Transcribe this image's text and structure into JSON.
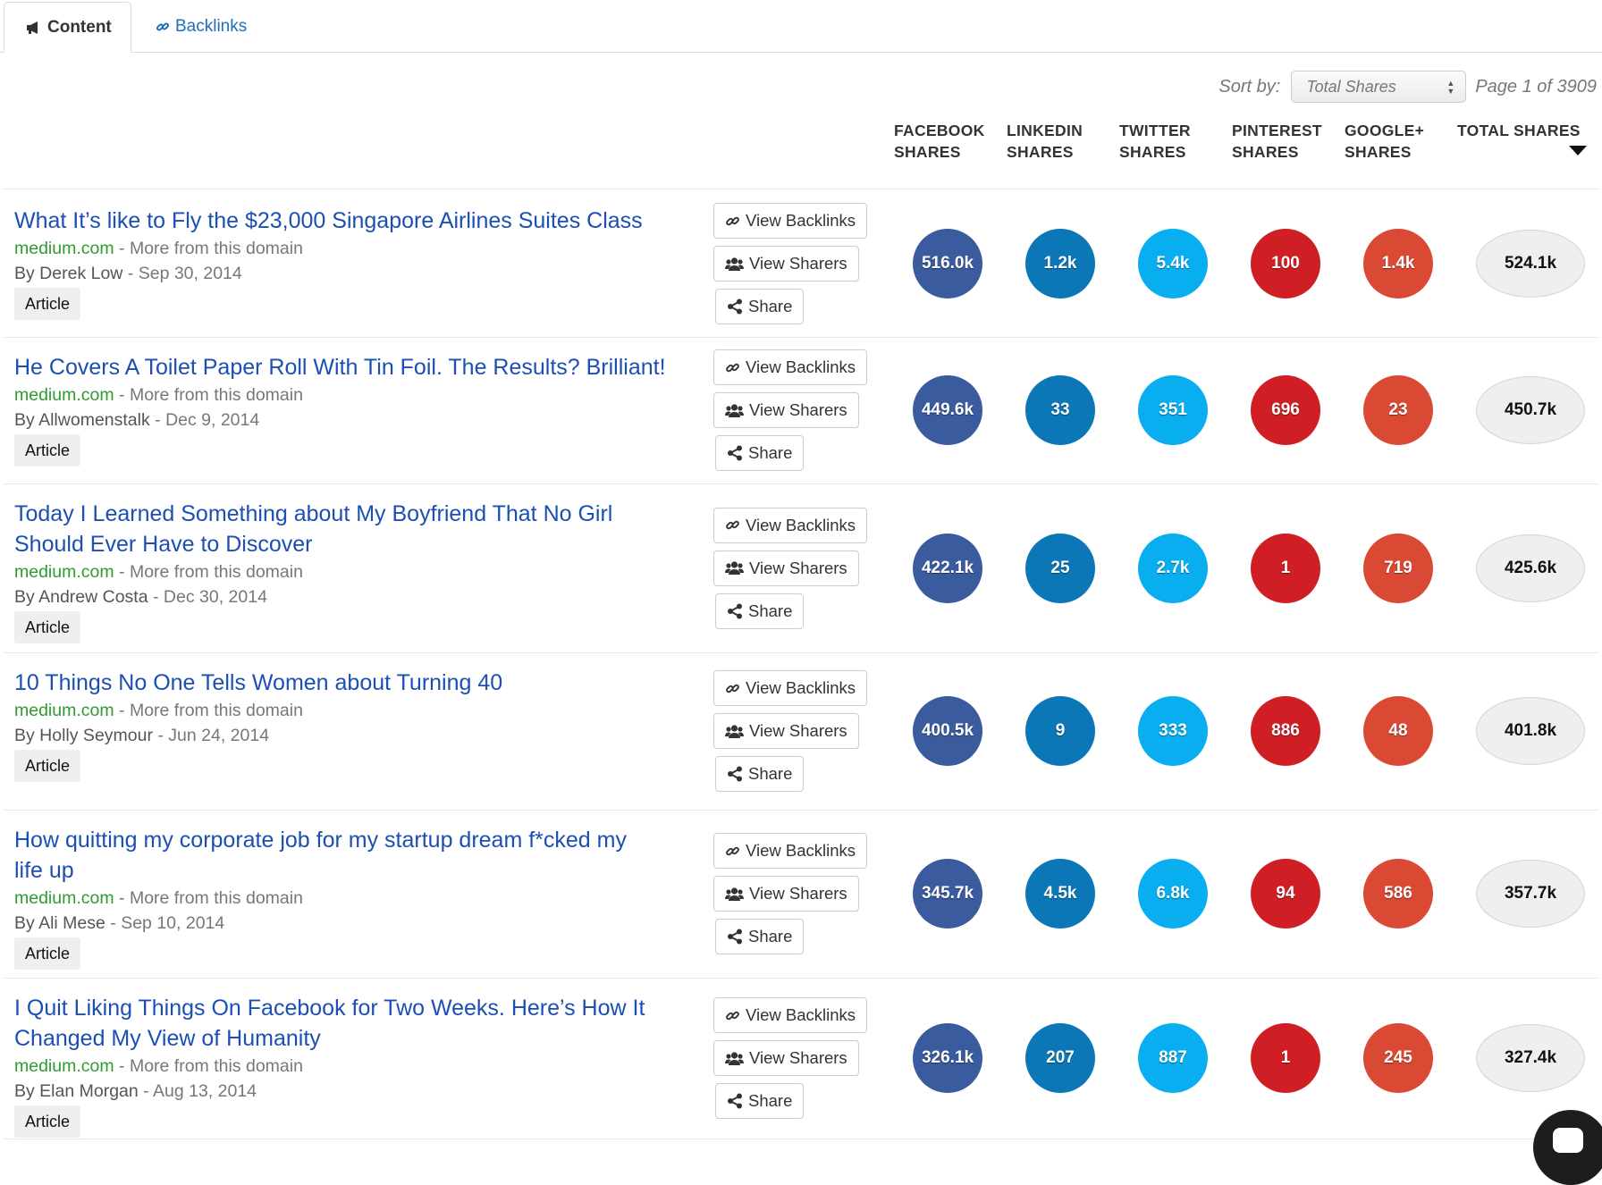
{
  "tabs": {
    "content_label": "Content",
    "backlinks_label": "Backlinks"
  },
  "sort": {
    "label": "Sort by:",
    "selected": "Total Shares",
    "page_info": "Page 1 of 3909"
  },
  "columns": {
    "facebook": [
      "FACEBOOK",
      "SHARES"
    ],
    "linkedin": [
      "LINKEDIN",
      "SHARES"
    ],
    "twitter": [
      "TWITTER",
      "SHARES"
    ],
    "pinterest": [
      "PINTEREST",
      "SHARES"
    ],
    "googleplus": [
      "GOOGLE+",
      "SHARES"
    ],
    "total": [
      "TOTAL SHARES",
      ""
    ]
  },
  "buttons": {
    "backlinks": "View Backlinks",
    "sharers": "View Sharers",
    "share": "Share"
  },
  "colors": {
    "facebook": "#3b5b9f",
    "linkedin": "#0b77b7",
    "twitter": "#08aeef",
    "pinterest": "#d01f24",
    "googleplus": "#da4933",
    "title_link": "#1b4fb3",
    "domain": "#2e9b2e"
  },
  "rows": [
    {
      "title_lines": [
        "What It’s like to Fly the $23,000 Singapore Airlines Suites Class"
      ],
      "domain": "medium.com",
      "more": " - More from this domain",
      "author": "By Derek Low",
      "date": " - Sep 30, 2014",
      "type": "Article",
      "facebook": "516.0k",
      "linkedin": "1.2k",
      "twitter": "5.4k",
      "pinterest": "100",
      "googleplus": "1.4k",
      "total": "524.1k"
    },
    {
      "title_lines": [
        "He Covers A Toilet Paper Roll With Tin Foil. The Results? Brilliant!"
      ],
      "domain": "medium.com",
      "more": " - More from this domain",
      "author": "By Allwomenstalk",
      "date": " - Dec 9, 2014",
      "type": "Article",
      "facebook": "449.6k",
      "linkedin": "33",
      "twitter": "351",
      "pinterest": "696",
      "googleplus": "23",
      "total": "450.7k"
    },
    {
      "title_lines": [
        "Today I Learned Something about My Boyfriend That No Girl",
        "Should Ever Have to Discover"
      ],
      "domain": "medium.com",
      "more": " - More from this domain",
      "author": "By Andrew Costa",
      "date": " - Dec 30, 2014",
      "type": "Article",
      "facebook": "422.1k",
      "linkedin": "25",
      "twitter": "2.7k",
      "pinterest": "1",
      "googleplus": "719",
      "total": "425.6k"
    },
    {
      "title_lines": [
        "10 Things No One Tells Women about Turning 40"
      ],
      "domain": "medium.com",
      "more": " - More from this domain",
      "author": "By Holly Seymour",
      "date": " - Jun 24, 2014",
      "type": "Article",
      "facebook": "400.5k",
      "linkedin": "9",
      "twitter": "333",
      "pinterest": "886",
      "googleplus": "48",
      "total": "401.8k"
    },
    {
      "title_lines": [
        "How quitting my corporate job for my startup dream f*cked my",
        "life up"
      ],
      "domain": "medium.com",
      "more": " - More from this domain",
      "author": "By Ali Mese",
      "date": " - Sep 10, 2014",
      "type": "Article",
      "facebook": "345.7k",
      "linkedin": "4.5k",
      "twitter": "6.8k",
      "pinterest": "94",
      "googleplus": "586",
      "total": "357.7k"
    },
    {
      "title_lines": [
        "I Quit Liking Things On Facebook for Two Weeks. Here’s How It",
        "Changed My View of Humanity"
      ],
      "domain": "medium.com",
      "more": " - More from this domain",
      "author": "By Elan Morgan",
      "date": " - Aug 13, 2014",
      "type": "Article",
      "facebook": "326.1k",
      "linkedin": "207",
      "twitter": "887",
      "pinterest": "1",
      "googleplus": "245",
      "total": "327.4k"
    }
  ]
}
